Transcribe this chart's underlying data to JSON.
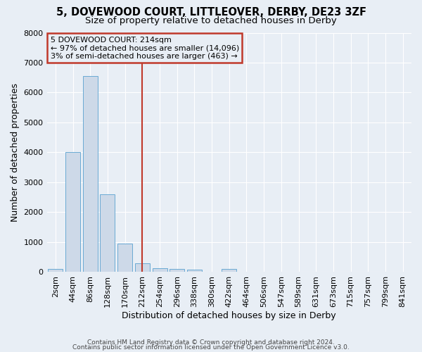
{
  "title1": "5, DOVEWOOD COURT, LITTLEOVER, DERBY, DE23 3ZF",
  "title2": "Size of property relative to detached houses in Derby",
  "xlabel": "Distribution of detached houses by size in Derby",
  "ylabel": "Number of detached properties",
  "bar_labels": [
    "2sqm",
    "44sqm",
    "86sqm",
    "128sqm",
    "170sqm",
    "212sqm",
    "254sqm",
    "296sqm",
    "338sqm",
    "380sqm",
    "422sqm",
    "464sqm",
    "506sqm",
    "547sqm",
    "589sqm",
    "631sqm",
    "673sqm",
    "715sqm",
    "757sqm",
    "799sqm",
    "841sqm"
  ],
  "bar_heights": [
    100,
    4000,
    6550,
    2600,
    950,
    300,
    130,
    100,
    90,
    0,
    100,
    0,
    0,
    0,
    0,
    0,
    0,
    0,
    0,
    0,
    0
  ],
  "bar_color": "#cdd9e8",
  "bar_edgecolor": "#6aaad4",
  "vline_x_index": 5,
  "vline_color": "#c0392b",
  "annotation_line1": "5 DOVEWOOD COURT: 214sqm",
  "annotation_line2": "← 97% of detached houses are smaller (14,096)",
  "annotation_line3": "3% of semi-detached houses are larger (463) →",
  "annotation_box_color": "#c0392b",
  "ylim": [
    0,
    8000
  ],
  "yticks": [
    0,
    1000,
    2000,
    3000,
    4000,
    5000,
    6000,
    7000,
    8000
  ],
  "footer1": "Contains HM Land Registry data © Crown copyright and database right 2024.",
  "footer2": "Contains public sector information licensed under the Open Government Licence v3.0.",
  "bg_color": "#e8eef5",
  "grid_color": "#ffffff",
  "title1_fontsize": 10.5,
  "title2_fontsize": 9.5,
  "tick_fontsize": 8,
  "ylabel_fontsize": 9,
  "xlabel_fontsize": 9,
  "footer_fontsize": 6.5
}
